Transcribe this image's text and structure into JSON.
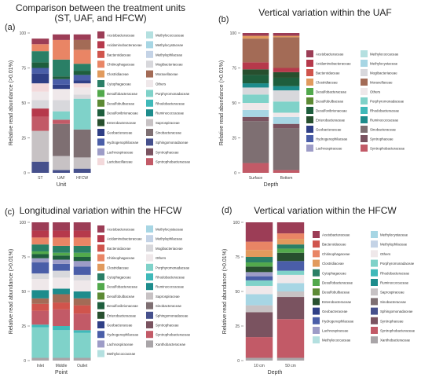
{
  "panel_labels": [
    "(a)",
    "(b)",
    "(c)",
    "(d)"
  ],
  "colors": {
    "Acetobacteraceae": "#9c3d56",
    "Acidaminobacteraceae": "#b6394b",
    "Bacteroidaceae": "#d0544c",
    "Chitinophagaceae": "#e98565",
    "Clostridiaceae": "#e19a5d",
    "Cytophagaceae": "#2a7f66",
    "Desulfobacteraceae": "#52a94c",
    "Desulfobulbaceae": "#5c8a34",
    "Desulfovibrionaceae": "#1e5e3d",
    "Enterobacteraceae": "#274f2e",
    "Geobacteraceae": "#2f3f86",
    "Hydrogenophilaceae": "#4a5ea8",
    "Lachnospiraceae": "#9d9cc7",
    "Lactobacillaceae": "#f3d9db",
    "Methylococcaceae": "#b4e0e0",
    "Methylocystaceae": "#a7d6e4",
    "Methylophilaceae": "#c4d3e6",
    "Mogibacteriaceae": "#d8d8dc",
    "Moraxellaceae": "#a36b56",
    "Others": "#efe8ea",
    "Porphyromonadaceae": "#7fd2c9",
    "Rhodobacteraceae": "#3fb9b9",
    "Ruminococcaceae": "#1d8c8c",
    "Saprospiraceae": "#c7c2c4",
    "Sinobacteraceae": "#7e6f72",
    "Sphingomonadaceae": "#46508c",
    "Syntrophaceae": "#7a5360",
    "Syntrophobacteraceae": "#c25a67",
    "Xanthobacteraceae": "#a9a5a8"
  },
  "chart_data": [
    {
      "id": "a",
      "type": "bar",
      "stacked": true,
      "title": "Comparison between the treatment units\n(ST, UAF, and HFCW)",
      "xlabel": "Unit",
      "ylabel": "Relative read abundance (>0.01%)",
      "ylim": [
        0,
        100
      ],
      "yticks": [
        0,
        25,
        50,
        75,
        100
      ],
      "categories": [
        "ST",
        "UAF",
        "HFCW"
      ],
      "legend": [
        "Acetobacteraceae",
        "Acidaminobacteraceae",
        "Bacteroidaceae",
        "Chitinophagaceae",
        "Clostridiaceae",
        "Cytophagaceae",
        "Desulfobacteraceae",
        "Desulfobulbaceae",
        "Desulfovibrionaceae",
        "Enterobacteraceae",
        "Geobacteraceae",
        "Hydrogenophilaceae",
        "Lachnospiraceae",
        "Lactobacillaceae",
        "Methylococcaceae",
        "Methylocystaceae",
        "Methylophilaceae",
        "Mogibacteriaceae",
        "Moraxellaceae",
        "Others",
        "Porphyromonadaceae",
        "Rhodobacteraceae",
        "Ruminococcaceae",
        "Saprospiraceae",
        "Sinobacteraceae",
        "Sphingomonadaceae",
        "Syntrophaceae",
        "Syntrophobacteraceae"
      ],
      "series": [
        {
          "name": "Sphingomonadaceae",
          "values": [
            8,
            2,
            3
          ]
        },
        {
          "name": "Saprospiraceae",
          "values": [
            22,
            10,
            8
          ]
        },
        {
          "name": "Sinobacteraceae",
          "values": [
            0,
            23,
            20
          ]
        },
        {
          "name": "Syntrophobacteraceae",
          "values": [
            10,
            3,
            0
          ]
        },
        {
          "name": "Acidaminobacteraceae",
          "values": [
            6,
            0,
            0
          ]
        },
        {
          "name": "Porphyromonadaceae",
          "values": [
            0,
            6,
            22
          ]
        },
        {
          "name": "Mogibacteriaceae",
          "values": [
            6,
            8,
            3
          ]
        },
        {
          "name": "Others",
          "values": [
            6,
            8,
            5
          ]
        },
        {
          "name": "Lactobacillaceae",
          "values": [
            6,
            0,
            3
          ]
        },
        {
          "name": "Geobacteraceae",
          "values": [
            7,
            3,
            2
          ]
        },
        {
          "name": "Hydrogenophilaceae",
          "values": [
            4,
            4,
            4
          ]
        },
        {
          "name": "Desulfovibrionaceae",
          "values": [
            4,
            2,
            3
          ]
        },
        {
          "name": "Cytophagaceae",
          "values": [
            8,
            12,
            5
          ]
        },
        {
          "name": "Chitinophagaceae",
          "values": [
            5,
            14,
            10
          ]
        },
        {
          "name": "Moraxellaceae",
          "values": [
            0,
            0,
            7
          ]
        },
        {
          "name": "Acetobacteraceae",
          "values": [
            4,
            4,
            4
          ]
        }
      ]
    },
    {
      "id": "b",
      "type": "bar",
      "stacked": true,
      "title": "Vertical variation within the UAF",
      "xlabel": "Depth",
      "ylabel": "Relative read abundance (>0.01%)",
      "ylim": [
        0,
        100
      ],
      "yticks": [
        0,
        25,
        50,
        75,
        100
      ],
      "categories": [
        "Surface",
        "Bottom"
      ],
      "legend": [
        "Acetobacteraceae",
        "Acidaminobacteraceae",
        "Bacteroidaceae",
        "Clostridiaceae",
        "Desulfobacteraceae",
        "Desulfobulbaceae",
        "Desulfovibrionaceae",
        "Enterobacteraceae",
        "Geobacteraceae",
        "Hydrogenophilaceae",
        "Lachnospiraceae",
        "Methylococcaceae",
        "Methylocystaceae",
        "Mogibacteriaceae",
        "Moraxellaceae",
        "Others",
        "Porphyromonadaceae",
        "Rhodobacteraceae",
        "Ruminococcaceae",
        "Sinobacteraceae",
        "Syntrophaceae",
        "Syntrophobacteraceae"
      ],
      "series": [
        {
          "name": "Syntrophobacteraceae",
          "values": [
            7,
            2
          ]
        },
        {
          "name": "Sinobacteraceae",
          "values": [
            30,
            30
          ]
        },
        {
          "name": "Syntrophaceae",
          "values": [
            3,
            3
          ]
        },
        {
          "name": "Methylocystaceae",
          "values": [
            5,
            5
          ]
        },
        {
          "name": "Others",
          "values": [
            5,
            3
          ]
        },
        {
          "name": "Porphyromonadaceae",
          "values": [
            6,
            8
          ]
        },
        {
          "name": "Mogibacteriaceae",
          "values": [
            5,
            8
          ]
        },
        {
          "name": "Ruminococcaceae",
          "values": [
            3,
            3
          ]
        },
        {
          "name": "Desulfovibrionaceae",
          "values": [
            6,
            6
          ]
        },
        {
          "name": "Enterobacteraceae",
          "values": [
            4,
            4
          ]
        },
        {
          "name": "Acidaminobacteraceae",
          "values": [
            5,
            3
          ]
        },
        {
          "name": "Moraxellaceae",
          "values": [
            17,
            22
          ]
        },
        {
          "name": "Clostridiaceae",
          "values": [
            2,
            1
          ]
        },
        {
          "name": "Acetobacteraceae",
          "values": [
            2,
            2
          ]
        }
      ]
    },
    {
      "id": "c",
      "type": "bar",
      "stacked": true,
      "title": "Longitudinal variation within the HFCW",
      "xlabel": "Point",
      "ylabel": "Relative read abundance (>0.01%)",
      "ylim": [
        0,
        100
      ],
      "yticks": [
        0,
        25,
        50,
        75,
        100
      ],
      "categories": [
        "Inlet",
        "Middle",
        "Outlet"
      ],
      "legend": [
        "Acetobacteraceae",
        "Acidaminobacteraceae",
        "Bacteroidaceae",
        "Chitinophagaceae",
        "Clostridiaceae",
        "Cytophagaceae",
        "Desulfobacteraceae",
        "Desulfobulbaceae",
        "Desulfovibrionaceae",
        "Enterobacteraceae",
        "Geobacteraceae",
        "Hydrogenophilaceae",
        "Lachnospiraceae",
        "Methylococcaceae",
        "Methylocystaceae",
        "Methylophilaceae",
        "Mogibacteriaceae",
        "Others",
        "Porphyromonadaceae",
        "Rhodobacteraceae",
        "Ruminococcaceae",
        "Saprospiraceae",
        "Sinobacteraceae",
        "Sphingomonadaceae",
        "Syntrophaceae",
        "Syntrophobacteraceae",
        "Xanthobacteraceae"
      ],
      "series": [
        {
          "name": "Xanthobacteraceae",
          "values": [
            2,
            2,
            2
          ]
        },
        {
          "name": "Porphyromonadaceae",
          "values": [
            22,
            20,
            18
          ]
        },
        {
          "name": "Rhodobacteraceae",
          "values": [
            2,
            3,
            2
          ]
        },
        {
          "name": "Syntrophobacteraceae",
          "values": [
            10,
            12,
            12
          ]
        },
        {
          "name": "Bacteroidaceae",
          "values": [
            5,
            5,
            6
          ]
        },
        {
          "name": "Moraxellaceae",
          "values": [
            4,
            6,
            5
          ]
        },
        {
          "name": "Ruminococcaceae",
          "values": [
            6,
            4,
            5
          ]
        },
        {
          "name": "Others",
          "values": [
            8,
            8,
            8
          ]
        },
        {
          "name": "Mogibacteriaceae",
          "values": [
            4,
            5,
            4
          ]
        },
        {
          "name": "Hydrogenophilaceae",
          "values": [
            8,
            5,
            6
          ]
        },
        {
          "name": "Lachnospiraceae",
          "values": [
            3,
            3,
            4
          ]
        },
        {
          "name": "Desulfovibrionaceae",
          "values": [
            3,
            3,
            3
          ]
        },
        {
          "name": "Desulfobacteraceae",
          "values": [
            2,
            2,
            3
          ]
        },
        {
          "name": "Cytophagaceae",
          "values": [
            5,
            5,
            5
          ]
        },
        {
          "name": "Chitinophagaceae",
          "values": [
            5,
            6,
            6
          ]
        },
        {
          "name": "Acidaminobacteraceae",
          "values": [
            5,
            5,
            5
          ]
        },
        {
          "name": "Acetobacteraceae",
          "values": [
            6,
            6,
            6
          ]
        }
      ]
    },
    {
      "id": "d",
      "type": "bar",
      "stacked": true,
      "title": "Vertical variation within the HFCW",
      "xlabel": "Depth",
      "ylabel": "Relative read abundance (>0.01%)",
      "ylim": [
        0,
        100
      ],
      "yticks": [
        0,
        25,
        50,
        75,
        100
      ],
      "categories": [
        "10 cm",
        "50 cm"
      ],
      "legend": [
        "Acetobacteraceae",
        "Bacteroidaceae",
        "Chitinophagaceae",
        "Clostridiaceae",
        "Cytophagaceae",
        "Desulfobacteraceae",
        "Desulfobulbaceae",
        "Enterobacteraceae",
        "Geobacteraceae",
        "Hydrogenophilaceae",
        "Lachnospiraceae",
        "Methylococcaceae",
        "Methylocystaceae",
        "Methylophilaceae",
        "Others",
        "Porphyromonadaceae",
        "Rhodobacteraceae",
        "Ruminococcaceae",
        "Saprospiraceae",
        "Sinobacteraceae",
        "Sphingomonadaceae",
        "Syntrophaceae",
        "Syntrophobacteraceae",
        "Xanthobacteraceae"
      ],
      "series": [
        {
          "name": "Xanthobacteraceae",
          "values": [
            2,
            2
          ]
        },
        {
          "name": "Syntrophobacteraceae",
          "values": [
            15,
            28
          ]
        },
        {
          "name": "Syntrophaceae",
          "values": [
            18,
            16
          ]
        },
        {
          "name": "Saprospiraceae",
          "values": [
            5,
            4
          ]
        },
        {
          "name": "Methylocystaceae",
          "values": [
            8,
            6
          ]
        },
        {
          "name": "Others",
          "values": [
            6,
            6
          ]
        },
        {
          "name": "Porphyromonadaceae",
          "values": [
            4,
            3
          ]
        },
        {
          "name": "Hydrogenophilaceae",
          "values": [
            3,
            7
          ]
        },
        {
          "name": "Lachnospiraceae",
          "values": [
            3,
            0
          ]
        },
        {
          "name": "Enterobacteraceae",
          "values": [
            4,
            6
          ]
        },
        {
          "name": "Desulfobacteraceae",
          "values": [
            3,
            3
          ]
        },
        {
          "name": "Cytophagaceae",
          "values": [
            4,
            3
          ]
        },
        {
          "name": "Clostridiaceae",
          "values": [
            5,
            4
          ]
        },
        {
          "name": "Chitinophagaceae",
          "values": [
            6,
            4
          ]
        },
        {
          "name": "Acetobacteraceae",
          "values": [
            14,
            8
          ]
        }
      ]
    }
  ]
}
